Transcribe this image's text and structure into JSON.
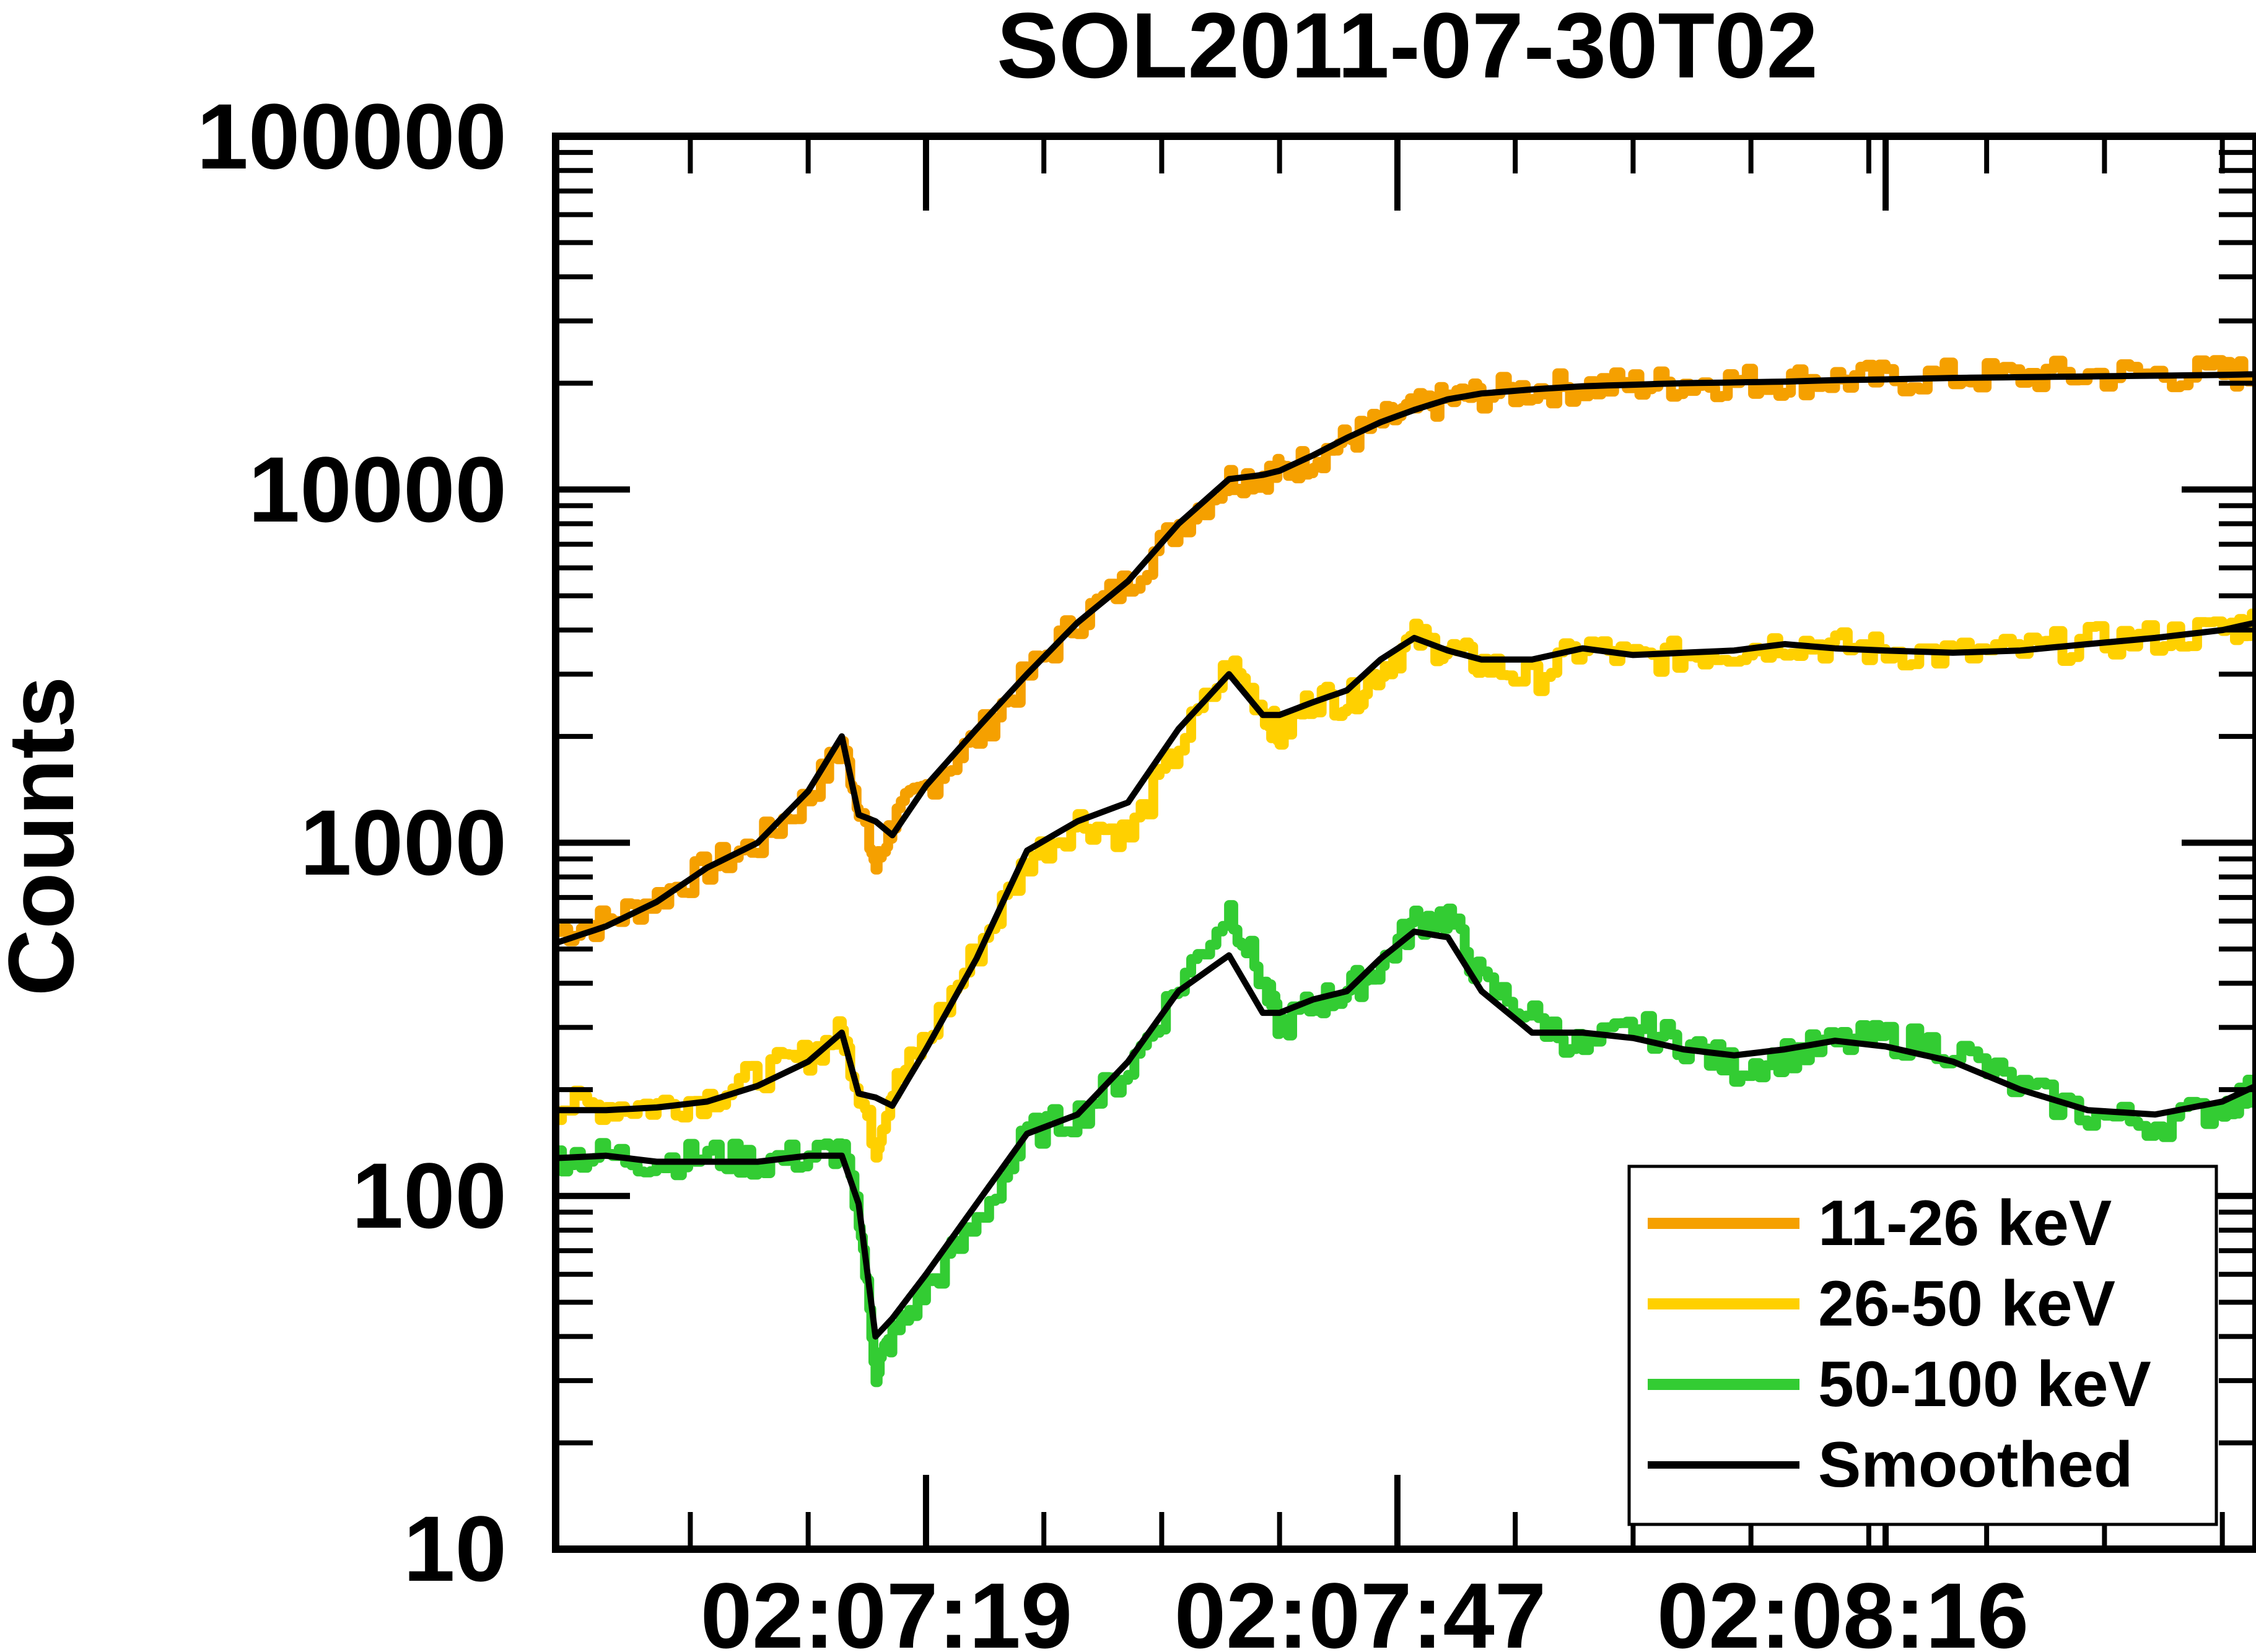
{
  "chart_data": {
    "type": "line",
    "title": "SOL2011-07-30T02",
    "xlabel": "",
    "ylabel": "Counts",
    "yscale": "log",
    "ylim": [
      10,
      100000
    ],
    "xlim": [
      "02:06:57",
      "02:08:38"
    ],
    "ytick_labels": [
      "10",
      "100",
      "1000",
      "10000",
      "100000"
    ],
    "xtick_labels": [
      "02:07:19",
      "02:07:47",
      "02:08:16"
    ],
    "grid": false,
    "legend_position": "bottom-right",
    "legend": [
      {
        "label": "11-26 keV",
        "color": "#f5a000"
      },
      {
        "label": "26-50 keV",
        "color": "#ffd000"
      },
      {
        "label": "50-100 keV",
        "color": "#33cc33"
      },
      {
        "label": "Smoothed",
        "color": "#000000"
      }
    ],
    "time_x": [
      "02:06:57",
      "02:07:00",
      "02:07:03",
      "02:07:06",
      "02:07:09",
      "02:07:12",
      "02:07:14",
      "02:07:15",
      "02:07:16",
      "02:07:17",
      "02:07:19",
      "02:07:22",
      "02:07:25",
      "02:07:28",
      "02:07:31",
      "02:07:34",
      "02:07:37",
      "02:07:39",
      "02:07:40",
      "02:07:42",
      "02:07:44",
      "02:07:46",
      "02:07:48",
      "02:07:50",
      "02:07:52",
      "02:07:55",
      "02:07:58",
      "02:08:01",
      "02:08:04",
      "02:08:07",
      "02:08:10",
      "02:08:13",
      "02:08:16",
      "02:08:20",
      "02:08:24",
      "02:08:28",
      "02:08:32",
      "02:08:36",
      "02:08:38"
    ],
    "series": [
      {
        "name": "11-26 keV",
        "color": "#f5a000",
        "raw_values": [
          560,
          600,
          700,
          850,
          1000,
          1350,
          1900,
          1300,
          850,
          1150,
          1450,
          2000,
          3000,
          4300,
          5500,
          8000,
          10700,
          11000,
          11200,
          12300,
          13800,
          15500,
          16800,
          18000,
          18600,
          19200,
          19600,
          19800,
          20000,
          20200,
          20300,
          20500,
          20600,
          20800,
          21000,
          21100,
          21200,
          21300,
          21300
        ]
      },
      {
        "name": "26-50 keV",
        "color": "#ffd000",
        "raw_values": [
          180,
          180,
          180,
          190,
          220,
          250,
          290,
          200,
          140,
          200,
          280,
          500,
          900,
          1150,
          1050,
          1900,
          3200,
          2400,
          2000,
          2600,
          2500,
          3100,
          3800,
          3500,
          3200,
          2900,
          3600,
          3300,
          3400,
          3500,
          3700,
          3600,
          3500,
          3400,
          3500,
          3700,
          3800,
          4000,
          4200
        ]
      },
      {
        "name": "50-100 keV",
        "color": "#33cc33",
        "raw_values": [
          130,
          130,
          125,
          130,
          125,
          130,
          135,
          90,
          32,
          40,
          55,
          85,
          150,
          170,
          230,
          400,
          650,
          400,
          300,
          350,
          380,
          450,
          600,
          620,
          400,
          320,
          260,
          300,
          270,
          230,
          250,
          270,
          280,
          260,
          200,
          170,
          160,
          180,
          200
        ]
      },
      {
        "name": "Smoothed 11-26 keV",
        "color": "#000000",
        "values": [
          520,
          580,
          680,
          850,
          1000,
          1400,
          2000,
          1200,
          1150,
          1050,
          1450,
          2100,
          3000,
          4200,
          5500,
          8000,
          10700,
          11000,
          11300,
          12500,
          14000,
          15500,
          16800,
          18000,
          18700,
          19200,
          19600,
          19800,
          20000,
          20100,
          20200,
          20400,
          20500,
          20700,
          20800,
          20900,
          21000,
          21100,
          21200
        ]
      },
      {
        "name": "Smoothed 26-50 keV",
        "color": "#000000",
        "values": [
          175,
          175,
          178,
          185,
          205,
          240,
          290,
          195,
          190,
          180,
          260,
          470,
          950,
          1150,
          1300,
          2100,
          3000,
          2300,
          2300,
          2500,
          2700,
          3300,
          3800,
          3500,
          3300,
          3300,
          3550,
          3400,
          3450,
          3500,
          3650,
          3550,
          3500,
          3450,
          3500,
          3650,
          3800,
          4000,
          4200
        ]
      },
      {
        "name": "Smoothed 50-100 keV",
        "color": "#000000",
        "values": [
          128,
          130,
          125,
          125,
          125,
          130,
          130,
          95,
          40,
          45,
          60,
          95,
          150,
          170,
          240,
          380,
          480,
          330,
          330,
          360,
          380,
          470,
          560,
          540,
          380,
          290,
          290,
          280,
          260,
          250,
          260,
          275,
          265,
          240,
          200,
          175,
          170,
          185,
          205
        ]
      }
    ]
  }
}
